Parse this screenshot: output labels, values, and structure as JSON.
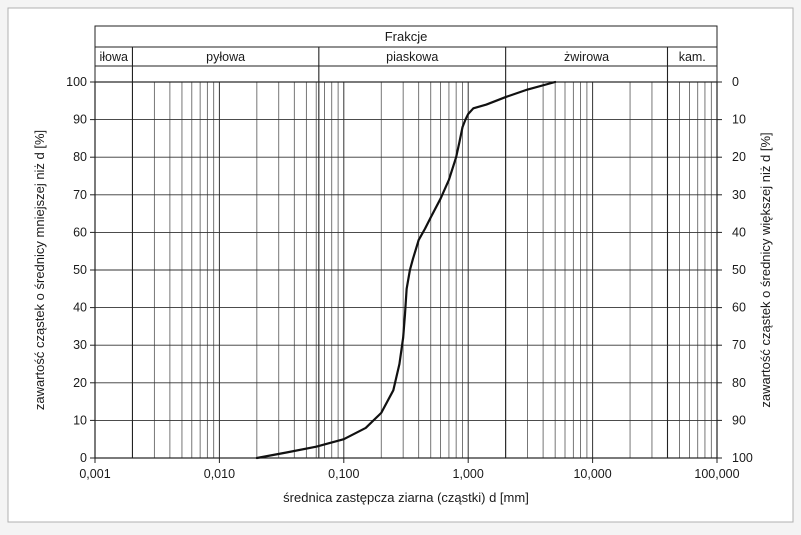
{
  "chart_data": {
    "type": "line",
    "xscale": "log",
    "xlim": [
      0.001,
      100
    ],
    "ylim": [
      0,
      100
    ],
    "xlabel": "średnica zastępcza ziarna (cząstki) d [mm]",
    "ylabel": "zawartość cząstek o średnicy mniejszej niż d [%]",
    "ylabel_right": "zawartość cząstek o średnicy większej niż d [%]",
    "header_title": "Frakcje",
    "fractions": [
      {
        "label": "iłowa",
        "from": 0.001,
        "to": 0.002
      },
      {
        "label": "pyłowa",
        "from": 0.002,
        "to": 0.063
      },
      {
        "label": "piaskowa",
        "from": 0.063,
        "to": 2.0
      },
      {
        "label": "żwirowa",
        "from": 2.0,
        "to": 40
      },
      {
        "label": "kam.",
        "from": 40,
        "to": 100
      }
    ],
    "x_ticks": [
      {
        "value": 0.001,
        "label": "0,001"
      },
      {
        "value": 0.01,
        "label": "0,010"
      },
      {
        "value": 0.1,
        "label": "0,100"
      },
      {
        "value": 1,
        "label": "1,000"
      },
      {
        "value": 10,
        "label": "10,000"
      },
      {
        "value": 100,
        "label": "100,000"
      }
    ],
    "y_ticks_left": [
      "0",
      "10",
      "20",
      "30",
      "40",
      "50",
      "60",
      "70",
      "80",
      "90",
      "100"
    ],
    "y_ticks_right": [
      "100",
      "90",
      "80",
      "70",
      "60",
      "50",
      "40",
      "30",
      "20",
      "10",
      "0"
    ],
    "grid": true,
    "series": [
      {
        "x": [
          0.02,
          0.035,
          0.06,
          0.1,
          0.15,
          0.2,
          0.25,
          0.28,
          0.3,
          0.31,
          0.32,
          0.34,
          0.36,
          0.4,
          0.45,
          0.5,
          0.6,
          0.7,
          0.8,
          0.85,
          0.9,
          0.95,
          1.0,
          1.1,
          1.4,
          2.0,
          3.0,
          5.0
        ],
        "y": [
          0,
          1.5,
          3,
          5,
          8,
          12,
          18,
          25,
          32,
          38,
          45,
          50,
          53,
          58,
          61,
          64,
          69,
          74,
          80,
          84,
          88,
          90,
          91.5,
          93,
          94,
          96,
          98,
          100
        ]
      }
    ]
  }
}
